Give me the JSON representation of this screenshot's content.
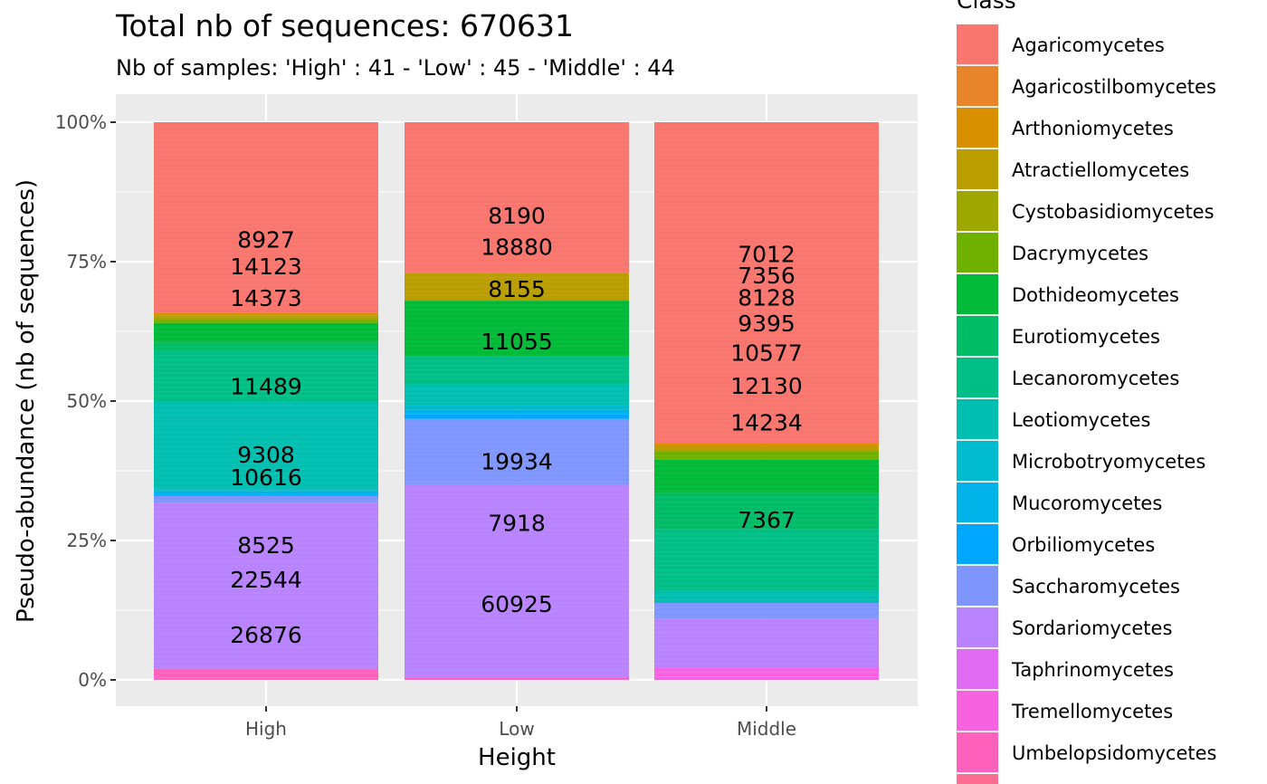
{
  "chart_data": {
    "type": "bar",
    "stacked": true,
    "title": "Total nb of sequences:  670631",
    "subtitle": "Nb of samples: 'High' : 41 - 'Low' : 45 - 'Middle' : 44",
    "xlabel": "Height",
    "ylabel": "Pseudo-abundance (nb of sequences)",
    "ylim": [
      0,
      1
    ],
    "y_ticks": [
      "0%",
      "25%",
      "50%",
      "75%",
      "100%"
    ],
    "categories": [
      "High",
      "Low",
      "Middle"
    ],
    "grid": true,
    "legend": {
      "title": "Class",
      "placement": "right",
      "entries": [
        {
          "name": "Agaricomycetes",
          "color": "#F8766D"
        },
        {
          "name": "Agaricostilbomycetes",
          "color": "#E8852B"
        },
        {
          "name": "Arthoniomycetes",
          "color": "#D89000"
        },
        {
          "name": "Atractiellomycetes",
          "color": "#BA9E00"
        },
        {
          "name": "Cystobasidiomycetes",
          "color": "#9EA700"
        },
        {
          "name": "Dacrymycetes",
          "color": "#6EB100"
        },
        {
          "name": "Dothideomycetes",
          "color": "#00BA38"
        },
        {
          "name": "Eurotiomycetes",
          "color": "#00BC66"
        },
        {
          "name": "Lecanoromycetes",
          "color": "#00BF86"
        },
        {
          "name": "Leotiomycetes",
          "color": "#00BFB0"
        },
        {
          "name": "Microbotryomycetes",
          "color": "#00BBD0"
        },
        {
          "name": "Mucoromycetes",
          "color": "#00B2E8"
        },
        {
          "name": "Orbiliomycetes",
          "color": "#00A7FF"
        },
        {
          "name": "Saccharomycetes",
          "color": "#7F96FF"
        },
        {
          "name": "Sordariomycetes",
          "color": "#B983FF"
        },
        {
          "name": "Taphrinomycetes",
          "color": "#E06CF3"
        },
        {
          "name": "Tremellomycetes",
          "color": "#F563E1"
        },
        {
          "name": "Umbelopsidomycetes",
          "color": "#FF62BC"
        }
      ]
    },
    "stacks": [
      {
        "category": "High",
        "segments": [
          {
            "class": "Umbelopsidomycetes",
            "from": 0.0,
            "to": 0.02
          },
          {
            "class": "Sordariomycetes",
            "from": 0.02,
            "to": 0.318
          },
          {
            "class": "Saccharomycetes",
            "from": 0.318,
            "to": 0.33
          },
          {
            "class": "Orbiliomycetes",
            "from": 0.33,
            "to": 0.334
          },
          {
            "class": "Mucoromycetes",
            "from": 0.334,
            "to": 0.338
          },
          {
            "class": "Microbotryomycetes",
            "from": 0.338,
            "to": 0.342
          },
          {
            "class": "Leotiomycetes",
            "from": 0.342,
            "to": 0.5
          },
          {
            "class": "Lecanoromycetes",
            "from": 0.5,
            "to": 0.59
          },
          {
            "class": "Eurotiomycetes",
            "from": 0.59,
            "to": 0.605
          },
          {
            "class": "Dothideomycetes",
            "from": 0.605,
            "to": 0.64
          },
          {
            "class": "Dacrymycetes",
            "from": 0.64,
            "to": 0.646
          },
          {
            "class": "Cystobasidiomycetes",
            "from": 0.646,
            "to": 0.65
          },
          {
            "class": "Atractiellomycetes",
            "from": 0.65,
            "to": 0.654
          },
          {
            "class": "Arthoniomycetes",
            "from": 0.654,
            "to": 0.658
          },
          {
            "class": "Agaricomycetes",
            "from": 0.658,
            "to": 1.0
          }
        ],
        "labels": [
          {
            "text": "8927",
            "y": 0.79
          },
          {
            "text": "14123",
            "y": 0.742
          },
          {
            "text": "14373",
            "y": 0.685
          },
          {
            "text": "11489",
            "y": 0.527
          },
          {
            "text": "9308",
            "y": 0.404
          },
          {
            "text": "10616",
            "y": 0.364
          },
          {
            "text": "8525",
            "y": 0.242
          },
          {
            "text": "22544",
            "y": 0.18
          },
          {
            "text": "26876",
            "y": 0.081
          }
        ]
      },
      {
        "category": "Low",
        "segments": [
          {
            "class": "Umbelopsidomycetes",
            "from": 0.0,
            "to": 0.004
          },
          {
            "class": "Sordariomycetes",
            "from": 0.004,
            "to": 0.35
          },
          {
            "class": "Saccharomycetes",
            "from": 0.35,
            "to": 0.468
          },
          {
            "class": "Orbiliomycetes",
            "from": 0.468,
            "to": 0.476
          },
          {
            "class": "Mucoromycetes",
            "from": 0.476,
            "to": 0.484
          },
          {
            "class": "Microbotryomycetes",
            "from": 0.484,
            "to": 0.492
          },
          {
            "class": "Leotiomycetes",
            "from": 0.492,
            "to": 0.53
          },
          {
            "class": "Lecanoromycetes",
            "from": 0.53,
            "to": 0.58
          },
          {
            "class": "Dothideomycetes",
            "from": 0.58,
            "to": 0.68
          },
          {
            "class": "Atractiellomycetes",
            "from": 0.68,
            "to": 0.73
          },
          {
            "class": "Agaricomycetes",
            "from": 0.73,
            "to": 1.0
          }
        ],
        "labels": [
          {
            "text": "8190",
            "y": 0.833
          },
          {
            "text": "18880",
            "y": 0.777
          },
          {
            "text": "8155",
            "y": 0.701
          },
          {
            "text": "11055",
            "y": 0.607
          },
          {
            "text": "19934",
            "y": 0.392
          },
          {
            "text": "7918",
            "y": 0.282
          },
          {
            "text": "60925",
            "y": 0.136
          }
        ]
      },
      {
        "category": "Middle",
        "segments": [
          {
            "class": "Tremellomycetes",
            "from": 0.0,
            "to": 0.022
          },
          {
            "class": "Sordariomycetes",
            "from": 0.022,
            "to": 0.11
          },
          {
            "class": "Saccharomycetes",
            "from": 0.11,
            "to": 0.138
          },
          {
            "class": "Leotiomycetes",
            "from": 0.138,
            "to": 0.16
          },
          {
            "class": "Lecanoromycetes",
            "from": 0.16,
            "to": 0.27
          },
          {
            "class": "Eurotiomycetes",
            "from": 0.27,
            "to": 0.335
          },
          {
            "class": "Dothideomycetes",
            "from": 0.335,
            "to": 0.395
          },
          {
            "class": "Dacrymycetes",
            "from": 0.395,
            "to": 0.41
          },
          {
            "class": "Atractiellomycetes",
            "from": 0.41,
            "to": 0.418
          },
          {
            "class": "Arthoniomycetes",
            "from": 0.418,
            "to": 0.425
          },
          {
            "class": "Agaricomycetes",
            "from": 0.425,
            "to": 1.0
          }
        ],
        "labels": [
          {
            "text": "7012",
            "y": 0.764
          },
          {
            "text": "7356",
            "y": 0.726
          },
          {
            "text": "8128",
            "y": 0.686
          },
          {
            "text": "9395",
            "y": 0.64
          },
          {
            "text": "10577",
            "y": 0.587
          },
          {
            "text": "12130",
            "y": 0.528
          },
          {
            "text": "14234",
            "y": 0.462
          },
          {
            "text": "7367",
            "y": 0.287
          }
        ]
      }
    ]
  }
}
